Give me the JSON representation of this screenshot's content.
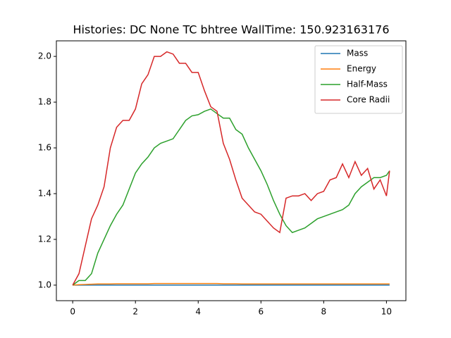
{
  "chart_data": {
    "type": "line",
    "title": "Histories: DC None TC bhtree WallTime: 150.923163176",
    "x": [
      0,
      0.2,
      0.4,
      0.6,
      0.8,
      1,
      1.2,
      1.4,
      1.6,
      1.8,
      2,
      2.2,
      2.4,
      2.6,
      2.8,
      3,
      3.2,
      3.4,
      3.6,
      3.8,
      4,
      4.2,
      4.4,
      4.6,
      4.8,
      5,
      5.2,
      5.4,
      5.6,
      5.8,
      6,
      6.2,
      6.4,
      6.6,
      6.8,
      7,
      7.2,
      7.4,
      7.6,
      7.8,
      8,
      8.2,
      8.4,
      8.6,
      8.8,
      9,
      9.2,
      9.4,
      9.6,
      9.8,
      10,
      10.1
    ],
    "series": [
      {
        "name": "Mass",
        "color": "#1f77b4",
        "values": [
          1,
          1,
          1,
          1,
          1,
          1,
          1,
          1,
          1,
          1,
          1,
          1,
          1,
          1,
          1,
          1,
          1,
          1,
          1,
          1,
          1,
          1,
          1,
          1,
          1,
          1,
          1,
          1,
          1,
          1,
          1,
          1,
          1,
          1,
          1,
          1,
          1,
          1,
          1,
          1,
          1,
          1,
          1,
          1,
          1,
          1,
          1,
          1,
          1,
          1,
          1,
          1
        ]
      },
      {
        "name": "Energy",
        "color": "#ff7f0e",
        "values": [
          1,
          1.002,
          1.003,
          1.004,
          1.005,
          1.005,
          1.005,
          1.006,
          1.006,
          1.006,
          1.006,
          1.006,
          1.006,
          1.007,
          1.007,
          1.007,
          1.007,
          1.007,
          1.007,
          1.007,
          1.007,
          1.007,
          1.007,
          1.007,
          1.006,
          1.006,
          1.006,
          1.005,
          1.005,
          1.005,
          1.005,
          1.005,
          1.005,
          1.005,
          1.005,
          1.005,
          1.005,
          1.005,
          1.005,
          1.005,
          1.005,
          1.005,
          1.005,
          1.005,
          1.005,
          1.005,
          1.005,
          1.005,
          1.005,
          1.005,
          1.005,
          1.005
        ]
      },
      {
        "name": "Half-Mass",
        "color": "#2ca02c",
        "values": [
          1.0,
          1.02,
          1.02,
          1.05,
          1.14,
          1.2,
          1.26,
          1.31,
          1.35,
          1.42,
          1.49,
          1.53,
          1.56,
          1.6,
          1.62,
          1.63,
          1.64,
          1.68,
          1.72,
          1.74,
          1.745,
          1.76,
          1.77,
          1.75,
          1.73,
          1.73,
          1.68,
          1.66,
          1.6,
          1.55,
          1.5,
          1.44,
          1.37,
          1.31,
          1.26,
          1.23,
          1.24,
          1.25,
          1.27,
          1.29,
          1.3,
          1.31,
          1.32,
          1.33,
          1.35,
          1.4,
          1.43,
          1.45,
          1.47,
          1.47,
          1.48,
          1.5
        ]
      },
      {
        "name": "Core Radii",
        "color": "#d62728",
        "values": [
          1.0,
          1.05,
          1.17,
          1.29,
          1.35,
          1.43,
          1.6,
          1.69,
          1.72,
          1.72,
          1.77,
          1.88,
          1.92,
          2.0,
          2.0,
          2.02,
          2.01,
          1.97,
          1.97,
          1.93,
          1.93,
          1.85,
          1.78,
          1.76,
          1.62,
          1.55,
          1.46,
          1.38,
          1.35,
          1.32,
          1.31,
          1.28,
          1.25,
          1.23,
          1.38,
          1.39,
          1.39,
          1.4,
          1.37,
          1.4,
          1.41,
          1.46,
          1.47,
          1.53,
          1.47,
          1.54,
          1.48,
          1.51,
          1.42,
          1.46,
          1.39,
          1.5
        ]
      }
    ],
    "xlim": [
      -0.52,
      10.62
    ],
    "xticks": [
      0,
      2,
      4,
      6,
      8,
      10
    ],
    "ylim": [
      0.932,
      2.068
    ],
    "yticks": [
      {
        "value": 1,
        "label": "1.0"
      },
      1.2,
      1.4,
      1.6,
      1.8,
      {
        "value": 2,
        "label": "2.0"
      }
    ],
    "legend": "upper right"
  }
}
